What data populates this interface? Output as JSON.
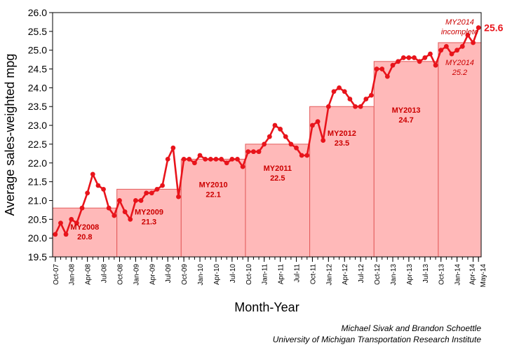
{
  "chart_data": {
    "type": "line",
    "xlabel": "Month-Year",
    "ylabel": "Average sales-weighted mpg",
    "ylim": [
      19.5,
      26.0
    ],
    "y_ticks": [
      19.5,
      20.0,
      20.5,
      21.0,
      21.5,
      22.0,
      22.5,
      23.0,
      23.5,
      24.0,
      24.5,
      25.0,
      25.5,
      26.0
    ],
    "grid": false,
    "legend": "none",
    "x_tick_labels": [
      "Oct-07",
      "Jan-08",
      "Apr-08",
      "Jul-08",
      "Oct-08",
      "Jan-09",
      "Apr-09",
      "Jul-09",
      "Oct-09",
      "Jan-10",
      "Apr-10",
      "Jul-10",
      "Oct-10",
      "Jan-11",
      "Apr-11",
      "Jul-11",
      "Oct-11",
      "Jan-12",
      "Apr-12",
      "Jul-12",
      "Oct-12",
      "Jan-13",
      "Apr-13",
      "Jul-13",
      "Oct-13",
      "Jan-14",
      "Apr-14",
      "May-14"
    ],
    "months": [
      "Oct-07",
      "Nov-07",
      "Dec-07",
      "Jan-08",
      "Feb-08",
      "Mar-08",
      "Apr-08",
      "May-08",
      "Jun-08",
      "Jul-08",
      "Aug-08",
      "Sep-08",
      "Oct-08",
      "Nov-08",
      "Dec-08",
      "Jan-09",
      "Feb-09",
      "Mar-09",
      "Apr-09",
      "May-09",
      "Jun-09",
      "Jul-09",
      "Aug-09",
      "Sep-09",
      "Oct-09",
      "Nov-09",
      "Dec-09",
      "Jan-10",
      "Feb-10",
      "Mar-10",
      "Apr-10",
      "May-10",
      "Jun-10",
      "Jul-10",
      "Aug-10",
      "Sep-10",
      "Oct-10",
      "Nov-10",
      "Dec-10",
      "Jan-11",
      "Feb-11",
      "Mar-11",
      "Apr-11",
      "May-11",
      "Jun-11",
      "Jul-11",
      "Aug-11",
      "Sep-11",
      "Oct-11",
      "Nov-11",
      "Dec-11",
      "Jan-12",
      "Feb-12",
      "Mar-12",
      "Apr-12",
      "May-12",
      "Jun-12",
      "Jul-12",
      "Aug-12",
      "Sep-12",
      "Oct-12",
      "Nov-12",
      "Dec-12",
      "Jan-13",
      "Feb-13",
      "Mar-13",
      "Apr-13",
      "May-13",
      "Jun-13",
      "Jul-13",
      "Aug-13",
      "Sep-13",
      "Oct-13",
      "Nov-13",
      "Dec-13",
      "Jan-14",
      "Feb-14",
      "Mar-14",
      "Apr-14",
      "May-14"
    ],
    "series": [
      {
        "values": [
          20.1,
          20.4,
          20.1,
          20.5,
          20.4,
          20.8,
          21.2,
          21.7,
          21.4,
          21.3,
          20.8,
          20.6,
          21.0,
          20.7,
          20.5,
          21.0,
          21.0,
          21.2,
          21.2,
          21.3,
          21.4,
          22.1,
          22.4,
          21.1,
          22.1,
          22.1,
          22.0,
          22.2,
          22.1,
          22.1,
          22.1,
          22.1,
          22.0,
          22.1,
          22.1,
          21.9,
          22.3,
          22.3,
          22.3,
          22.5,
          22.7,
          23.0,
          22.9,
          22.7,
          22.5,
          22.4,
          22.2,
          22.2,
          23.0,
          23.1,
          22.6,
          23.5,
          23.9,
          24.0,
          23.9,
          23.7,
          23.5,
          23.5,
          23.7,
          23.8,
          24.5,
          24.5,
          24.3,
          24.6,
          24.7,
          24.8,
          24.8,
          24.8,
          24.7,
          24.8,
          24.9,
          24.6,
          25.0,
          25.1,
          24.9,
          25.0,
          25.1,
          25.4,
          25.2,
          25.6
        ]
      }
    ],
    "model_years": [
      {
        "label": "MY2008",
        "value": "20.8",
        "mpg": 20.8,
        "start": "Oct-07",
        "end": "Sep-08"
      },
      {
        "label": "MY2009",
        "value": "21.3",
        "mpg": 21.3,
        "start": "Oct-08",
        "end": "Sep-09"
      },
      {
        "label": "MY2010",
        "value": "22.1",
        "mpg": 22.1,
        "start": "Oct-09",
        "end": "Sep-10"
      },
      {
        "label": "MY2011",
        "value": "22.5",
        "mpg": 22.5,
        "start": "Oct-10",
        "end": "Sep-11"
      },
      {
        "label": "MY2012",
        "value": "23.5",
        "mpg": 23.5,
        "start": "Oct-11",
        "end": "Sep-12"
      },
      {
        "label": "MY2013",
        "value": "24.7",
        "mpg": 24.7,
        "start": "Oct-12",
        "end": "Sep-13"
      },
      {
        "label": "MY2014",
        "value": "25.2",
        "mpg": 25.2,
        "start": "Oct-13",
        "end": "May-14"
      }
    ],
    "annotations": {
      "latest_value": "25.6",
      "incomplete_line1": "MY2014",
      "incomplete_line2": "incomplete"
    }
  },
  "colors": {
    "line": "#e8141b",
    "fill": "#ffb9b9",
    "edge": "#e35a5a",
    "label": "#cc0000"
  },
  "credits": {
    "line1": "Michael Sivak and Brandon Schoettle",
    "line2": "University of Michigan Transportation Research Institute"
  }
}
